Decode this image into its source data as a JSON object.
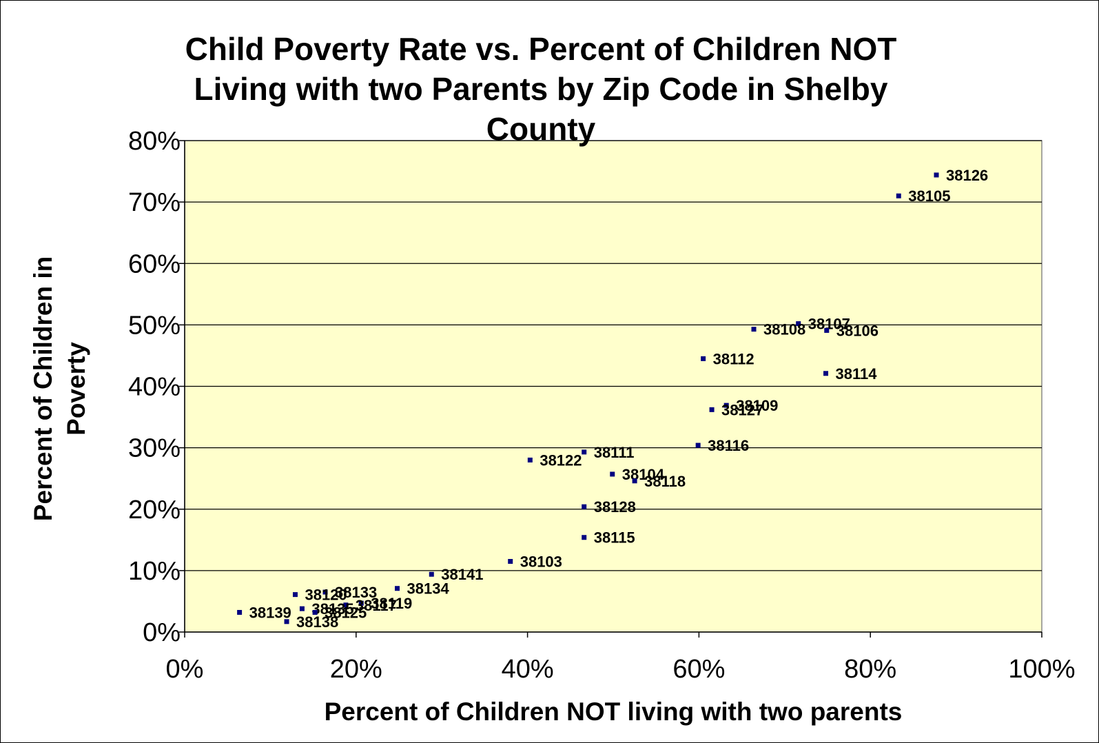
{
  "chart_data": {
    "type": "scatter",
    "title": "Child Poverty Rate vs. Percent of Children NOT\nLiving with two Parents by Zip Code in Shelby\nCounty",
    "xlabel": "Percent of Children NOT living with two parents",
    "ylabel": [
      "Percent of Children in",
      "Poverty"
    ],
    "xlim": [
      0,
      1
    ],
    "ylim": [
      0,
      0.8
    ],
    "x_ticks": [
      "0%",
      "20%",
      "40%",
      "60%",
      "80%",
      "100%"
    ],
    "y_ticks": [
      "0%",
      "10%",
      "20%",
      "30%",
      "40%",
      "50%",
      "60%",
      "70%",
      "80%"
    ],
    "grid": "horizontal",
    "plot_background": "#ffffcc",
    "marker_color": "#000080",
    "points": [
      {
        "label": "38126",
        "x": 0.877,
        "y": 0.744
      },
      {
        "label": "38105",
        "x": 0.833,
        "y": 0.71
      },
      {
        "label": "38107",
        "x": 0.716,
        "y": 0.502
      },
      {
        "label": "38108",
        "x": 0.664,
        "y": 0.493
      },
      {
        "label": "38106",
        "x": 0.749,
        "y": 0.491
      },
      {
        "label": "38112",
        "x": 0.605,
        "y": 0.445
      },
      {
        "label": "38114",
        "x": 0.748,
        "y": 0.421
      },
      {
        "label": "38109",
        "x": 0.632,
        "y": 0.369
      },
      {
        "label": "38127",
        "x": 0.615,
        "y": 0.362
      },
      {
        "label": "38116",
        "x": 0.599,
        "y": 0.304
      },
      {
        "label": "38111",
        "x": 0.466,
        "y": 0.293
      },
      {
        "label": "38122",
        "x": 0.403,
        "y": 0.28
      },
      {
        "label": "38104",
        "x": 0.499,
        "y": 0.257
      },
      {
        "label": "38118",
        "x": 0.525,
        "y": 0.246
      },
      {
        "label": "38128",
        "x": 0.466,
        "y": 0.204
      },
      {
        "label": "38115",
        "x": 0.466,
        "y": 0.154
      },
      {
        "label": "38103",
        "x": 0.38,
        "y": 0.115
      },
      {
        "label": "38141",
        "x": 0.288,
        "y": 0.094
      },
      {
        "label": "38134",
        "x": 0.248,
        "y": 0.071
      },
      {
        "label": "38133",
        "x": 0.164,
        "y": 0.065
      },
      {
        "label": "38120",
        "x": 0.129,
        "y": 0.061
      },
      {
        "label": "38119",
        "x": 0.206,
        "y": 0.047
      },
      {
        "label": "38117",
        "x": 0.188,
        "y": 0.044
      },
      {
        "label": "38135",
        "x": 0.137,
        "y": 0.038
      },
      {
        "label": "38125",
        "x": 0.152,
        "y": 0.032
      },
      {
        "label": "38139",
        "x": 0.064,
        "y": 0.032
      },
      {
        "label": "38138",
        "x": 0.119,
        "y": 0.017
      }
    ]
  }
}
